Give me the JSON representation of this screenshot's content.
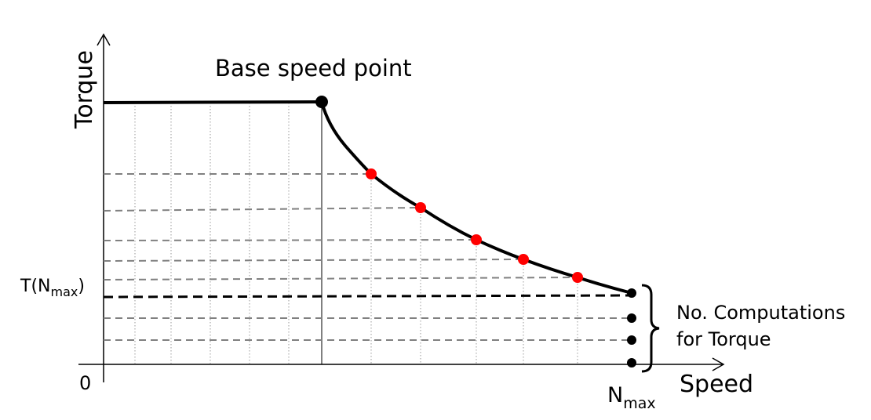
{
  "labels": {
    "title": "Base speed point",
    "y_axis": "Torque",
    "x_axis": "Speed",
    "origin": "0",
    "t_nmax_prefix": "T(N",
    "t_nmax_sub": "max",
    "t_nmax_suffix": ")",
    "nmax_main": "N",
    "nmax_sub": "max",
    "note_line1": "No. Computations",
    "note_line2": "for Torque"
  },
  "colors": {
    "curve": "#000000",
    "grid_dashed": "#808080",
    "grid_dotted": "#9a9a9a",
    "red_point": "#ff0000",
    "black_point": "#000000"
  }
}
